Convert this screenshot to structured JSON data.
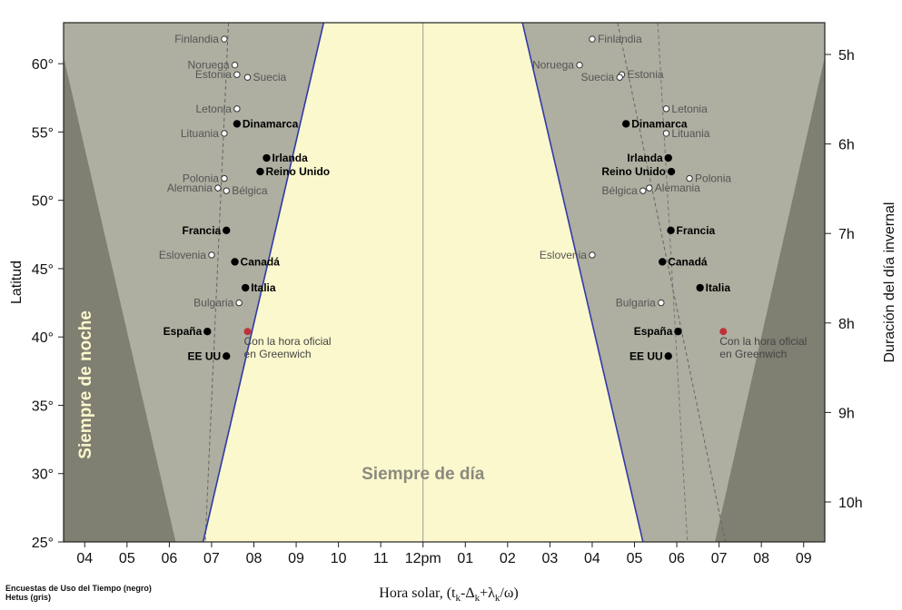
{
  "chart_data": {
    "type": "scatter",
    "title": "",
    "xlabel_prefix": "Hora solar, ",
    "xlabel_formula": "(tk-Δk+λk/ω)",
    "ylabel": "Latitud",
    "ylabel_right": "Duración del día invernal",
    "x_ticks": [
      "04",
      "05",
      "06",
      "07",
      "08",
      "09",
      "10",
      "11",
      "12pm",
      "01",
      "02",
      "03",
      "04",
      "05",
      "06",
      "07",
      "08",
      "09"
    ],
    "y_ticks": [
      "25°",
      "30°",
      "35°",
      "40°",
      "45°",
      "50°",
      "55°",
      "60°"
    ],
    "y_tick_values": [
      25,
      30,
      35,
      40,
      45,
      50,
      55,
      60
    ],
    "right_ticks": [
      "5h",
      "6h",
      "7h",
      "8h",
      "9h",
      "10h"
    ],
    "right_tick_values": [
      5,
      6,
      7,
      8,
      9,
      10
    ],
    "xlim": [
      3.5,
      21.5
    ],
    "ylim": [
      25,
      63
    ],
    "regions": {
      "night": "Siempre de noche",
      "day": "Siempre de día"
    },
    "reference_label": "Con la hora oficial en Greenwich",
    "series": [
      {
        "name": "Encuestas de Uso del Tiempo (negro)",
        "points": [
          {
            "label": "Dinamarca",
            "x": 7.6,
            "x2": 16.8,
            "y": 55.6
          },
          {
            "label": "Irlanda",
            "x": 8.3,
            "x2": 17.8,
            "y": 53.1
          },
          {
            "label": "Reino Unido",
            "x": 8.15,
            "x2": 17.87,
            "y": 52.1
          },
          {
            "label": "Francia",
            "x": 7.35,
            "x2": 17.86,
            "y": 47.8
          },
          {
            "label": "Canadá",
            "x": 7.55,
            "x2": 17.66,
            "y": 45.5
          },
          {
            "label": "Italia",
            "x": 7.8,
            "x2": 18.55,
            "y": 43.6
          },
          {
            "label": "España",
            "x": 6.9,
            "x2": 18.03,
            "y": 40.4
          },
          {
            "label": "EE UU",
            "x": 7.35,
            "x2": 17.8,
            "y": 38.6
          }
        ]
      },
      {
        "name": "Hetus (gris)",
        "points": [
          {
            "label": "Finlandia",
            "x": 7.3,
            "x2": 16.0,
            "y": 61.8
          },
          {
            "label": "Noruega",
            "x": 7.55,
            "x2": 15.7,
            "y": 59.9
          },
          {
            "label": "Estonia",
            "x": 7.6,
            "x2": 16.7,
            "y": 59.2
          },
          {
            "label": "Suecia",
            "x": 7.85,
            "x2": 16.65,
            "y": 59.0
          },
          {
            "label": "Letonia",
            "x": 7.6,
            "x2": 17.75,
            "y": 56.7
          },
          {
            "label": "Lituania",
            "x": 7.3,
            "x2": 17.75,
            "y": 54.9
          },
          {
            "label": "Polonia",
            "x": 7.3,
            "x2": 18.3,
            "y": 51.6
          },
          {
            "label": "Alemania",
            "x": 7.15,
            "x2": 17.35,
            "y": 50.9
          },
          {
            "label": "Bélgica",
            "x": 7.35,
            "x2": 17.2,
            "y": 50.7
          },
          {
            "label": "Eslovenia",
            "x": 7.0,
            "x2": 16.0,
            "y": 46.0
          },
          {
            "label": "Bulgaria",
            "x": 7.65,
            "x2": 17.63,
            "y": 42.5
          }
        ]
      },
      {
        "name": "Con la hora oficial en Greenwich",
        "points": [
          {
            "label": "",
            "x": 7.85,
            "x2": 19.1,
            "y": 40.4
          }
        ]
      }
    ],
    "colors": {
      "night": "#7f7f72",
      "twilight": "#aeaea1",
      "day": "#fbf8cd",
      "boundary": "#2f3aa6",
      "reference": "#c0303a",
      "hetus": "#555555",
      "tus": "#000000"
    }
  },
  "footnotes": {
    "line1": "Encuestas de Uso del Tiempo (negro)",
    "line2": "Hetus (gris)"
  }
}
